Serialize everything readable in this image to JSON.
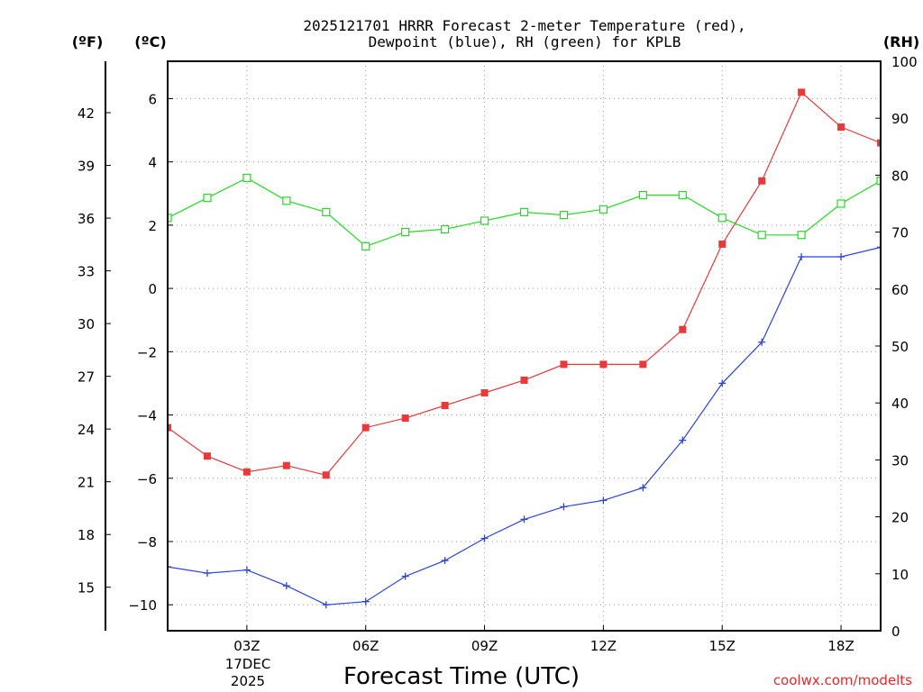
{
  "chart_data": {
    "type": "line",
    "title_lines": [
      "2025121701 HRRR Forecast 2-meter Temperature (red),",
      "Dewpoint (blue), RH (green) for KPLB"
    ],
    "xlabel": "Forecast Time (UTC)",
    "credit": "coolwx.com/modelts",
    "date_label": [
      "17DEC",
      "2025"
    ],
    "x_ticks": [
      {
        "hour": 3,
        "label": "03Z"
      },
      {
        "hour": 6,
        "label": "06Z"
      },
      {
        "hour": 9,
        "label": "09Z"
      },
      {
        "hour": 12,
        "label": "12Z"
      },
      {
        "hour": 15,
        "label": "15Z"
      },
      {
        "hour": 18,
        "label": "18Z"
      }
    ],
    "xlim": [
      1,
      19
    ],
    "grid": true,
    "axes": {
      "celsius": {
        "unit_label": "(ºC)",
        "ylim": [
          -10.82,
          7.18
        ],
        "ticks": [
          -10,
          -8,
          -6,
          -4,
          -2,
          0,
          2,
          4,
          6
        ]
      },
      "fahrenheit": {
        "unit_label": "(ºF)",
        "ticks": [
          15,
          18,
          21,
          24,
          27,
          30,
          33,
          36,
          39,
          42
        ]
      },
      "rh": {
        "unit_label": "(RH)",
        "ylim": [
          0,
          100
        ],
        "ticks": [
          0,
          10,
          20,
          30,
          40,
          50,
          60,
          70,
          80,
          90,
          100
        ]
      }
    },
    "series": [
      {
        "name": "Temperature",
        "axis": "celsius",
        "color": "#e83a3a",
        "marker": "filled-square",
        "x": [
          1,
          2,
          3,
          4,
          5,
          6,
          7,
          8,
          9,
          10,
          11,
          12,
          13,
          14,
          15,
          16,
          17,
          18,
          19
        ],
        "values": [
          -4.4,
          -5.3,
          -5.8,
          -5.6,
          -5.9,
          -4.4,
          -4.1,
          -3.7,
          -3.3,
          -2.9,
          -2.4,
          -2.4,
          -2.4,
          -1.3,
          1.4,
          3.4,
          6.2,
          5.1,
          4.6
        ]
      },
      {
        "name": "Dewpoint",
        "axis": "celsius",
        "color": "#2b45e0",
        "marker": "plus",
        "x": [
          1,
          2,
          3,
          4,
          5,
          6,
          7,
          8,
          9,
          10,
          11,
          12,
          13,
          14,
          15,
          16,
          17,
          18,
          19
        ],
        "values": [
          -8.8,
          -9.0,
          -8.9,
          -9.4,
          -10.0,
          -9.9,
          -9.1,
          -8.6,
          -7.9,
          -7.3,
          -6.9,
          -6.7,
          -6.3,
          -4.8,
          -3.0,
          -1.7,
          1.0,
          1.0,
          1.3
        ]
      },
      {
        "name": "RH",
        "axis": "rh",
        "color": "#22dd22",
        "marker": "open-square",
        "x": [
          1,
          2,
          3,
          4,
          5,
          6,
          7,
          8,
          9,
          10,
          11,
          12,
          13,
          14,
          15,
          16,
          17,
          18,
          19
        ],
        "values": [
          72.5,
          76,
          79.5,
          75.5,
          73.5,
          67.5,
          70,
          70.5,
          72,
          73.5,
          73,
          74,
          76.5,
          76.5,
          72.5,
          69.5,
          69.5,
          75,
          79
        ]
      }
    ]
  }
}
